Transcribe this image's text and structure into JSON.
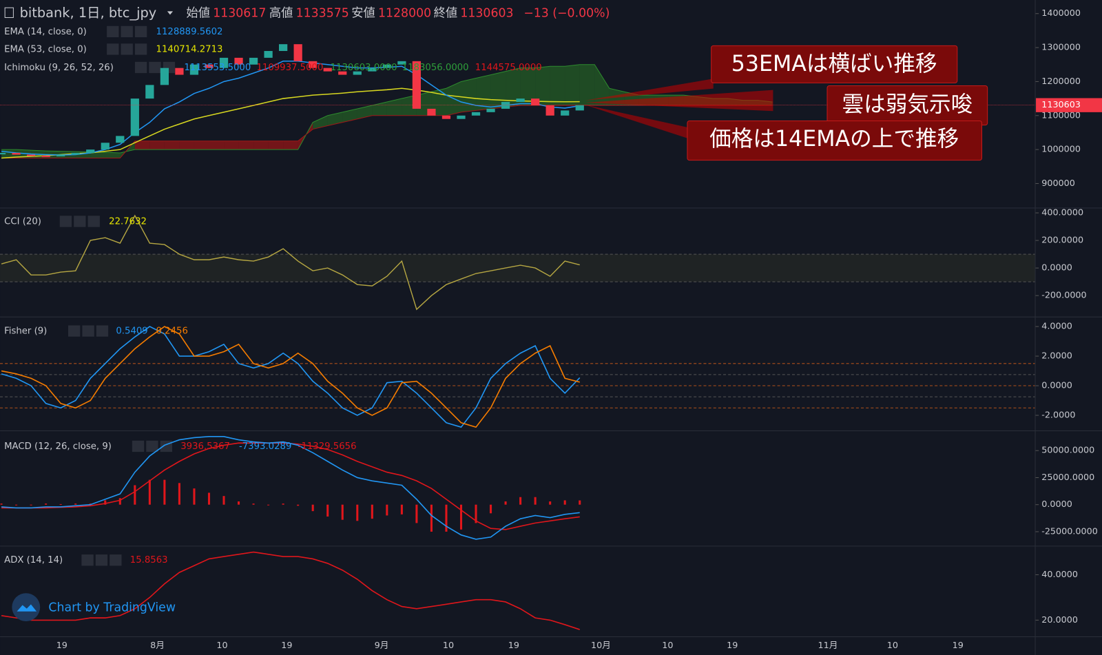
{
  "header": {
    "title": "bitbank, 1日, btc_jpy",
    "open_label": "始値",
    "open": 1130617,
    "high_label": "高値",
    "high": 1133575,
    "low_label": "安値",
    "low": 1128000,
    "close_label": "終値",
    "change": "−13 (−0.00%)"
  },
  "price": {
    "ylim": [
      830000,
      1440000
    ],
    "yticks": [
      900000,
      1000000,
      1100000,
      1200000,
      1300000,
      1400000
    ],
    "close": [
      990000,
      985000,
      982000,
      980000,
      985000,
      990000,
      1000000,
      1020000,
      1040000,
      1150000,
      1190000,
      1240000,
      1220000,
      1250000,
      1240000,
      1270000,
      1250000,
      1270000,
      1290000,
      1310000,
      1260000,
      1240000,
      1230000,
      1220000,
      1230000,
      1240000,
      1250000,
      1260000,
      1120000,
      1100000,
      1090000,
      1100000,
      1110000,
      1120000,
      1140000,
      1150000,
      1130000,
      1100000,
      1115000,
      1130603
    ],
    "ema14": {
      "name": "EMA (14, close, 0)",
      "color": "#2196f3",
      "values": [
        995000,
        990000,
        987000,
        985000,
        984000,
        985000,
        990000,
        1000000,
        1015000,
        1050000,
        1080000,
        1120000,
        1140000,
        1165000,
        1180000,
        1200000,
        1210000,
        1225000,
        1240000,
        1260000,
        1260000,
        1255000,
        1250000,
        1245000,
        1240000,
        1240000,
        1242000,
        1245000,
        1220000,
        1190000,
        1160000,
        1140000,
        1130000,
        1125000,
        1130000,
        1135000,
        1135000,
        1125000,
        1122000,
        1128889.5602
      ]
    },
    "ema53": {
      "name": "EMA (53, close, 0)",
      "color": "#d8d820",
      "values": [
        975000,
        978000,
        980000,
        982000,
        985000,
        988000,
        990000,
        995000,
        1000000,
        1020000,
        1040000,
        1060000,
        1075000,
        1090000,
        1100000,
        1110000,
        1120000,
        1130000,
        1140000,
        1150000,
        1155000,
        1160000,
        1163000,
        1166000,
        1170000,
        1173000,
        1176000,
        1180000,
        1175000,
        1168000,
        1160000,
        1155000,
        1150000,
        1147000,
        1145000,
        1143000,
        1142000,
        1141000,
        1140500,
        1140714.2713
      ]
    },
    "ichimoku": {
      "name": "Ichimoku (9, 26, 52, 26)",
      "legend": [
        "1113553.5000",
        "1109937.5000",
        "1130603.0000",
        "1183056.0000",
        "1144575.0000"
      ],
      "span_a": [
        1000000,
        1000000,
        998000,
        996000,
        995000,
        994000,
        993000,
        992000,
        990000,
        1000000,
        1000000,
        1000000,
        1000000,
        1000000,
        1000000,
        1000000,
        1000000,
        1000000,
        1000000,
        1000000,
        1000000,
        1080000,
        1100000,
        1110000,
        1120000,
        1130000,
        1140000,
        1150000,
        1160000,
        1170000,
        1180000,
        1200000,
        1210000,
        1220000,
        1230000,
        1240000,
        1240000,
        1245000,
        1245000,
        1250000,
        1250000,
        1180000,
        1170000,
        1160000,
        1160000,
        1160000,
        1160000,
        1155000,
        1150000,
        1150000,
        1145000,
        1145000,
        1140000
      ],
      "span_b": [
        975000,
        975000,
        975000,
        975000,
        975000,
        975000,
        975000,
        975000,
        975000,
        1025000,
        1025000,
        1025000,
        1025000,
        1025000,
        1025000,
        1025000,
        1025000,
        1025000,
        1025000,
        1025000,
        1025000,
        1060000,
        1070000,
        1080000,
        1090000,
        1100000,
        1100000,
        1100000,
        1100000,
        1100000,
        1100000,
        1110000,
        1115000,
        1120000,
        1125000,
        1130000,
        1130000,
        1130000,
        1130000,
        1130000,
        1130000,
        1130000,
        1130000,
        1130000,
        1130000,
        1130000,
        1130000,
        1130000,
        1130000,
        1130000,
        1130000,
        1130000,
        1130000
      ]
    }
  },
  "cci": {
    "name": "CCI (20)",
    "color": "#b5a642",
    "band": [
      -100,
      100
    ],
    "ylim": [
      -350,
      430
    ],
    "yticks": [
      {
        "value": 400,
        "label": "400.0000"
      },
      {
        "value": 200,
        "label": "200.0000"
      },
      {
        "value": 0,
        "label": "0.0000"
      },
      {
        "value": -200,
        "label": "-200.0000"
      }
    ],
    "values": [
      30,
      60,
      -50,
      -50,
      -30,
      -20,
      200,
      220,
      180,
      380,
      180,
      170,
      100,
      60,
      60,
      80,
      60,
      50,
      80,
      140,
      50,
      -20,
      0,
      -50,
      -120,
      -130,
      -60,
      50,
      -300,
      -200,
      -120,
      -80,
      -40,
      -20,
      0,
      20,
      0,
      -60,
      50,
      22.7632
    ]
  },
  "fisher": {
    "name": "Fisher (9)",
    "ylim": [
      -3,
      4.6
    ],
    "levels": [
      1.5,
      0.75,
      0,
      -0.75,
      -1.5
    ],
    "yticks": [
      {
        "value": 4,
        "label": "4.0000"
      },
      {
        "value": 2,
        "label": "2.0000"
      },
      {
        "value": 0,
        "label": "0.0000"
      },
      {
        "value": -2,
        "label": "-2.0000"
      }
    ],
    "series": [
      {
        "color": "#2196f3",
        "values": [
          0.8,
          0.5,
          0,
          -1.2,
          -1.5,
          -1.0,
          0.5,
          1.5,
          2.5,
          3.3,
          4.0,
          3.5,
          2.0,
          2.0,
          2.3,
          2.8,
          1.5,
          1.2,
          1.5,
          2.2,
          1.5,
          0.3,
          -0.5,
          -1.5,
          -2.0,
          -1.5,
          0.2,
          0.3,
          -0.5,
          -1.5,
          -2.5,
          -2.8,
          -1.5,
          0.5,
          1.5,
          2.2,
          2.7,
          0.5,
          -0.5,
          0.5409
        ]
      },
      {
        "color": "#f57c00",
        "values": [
          1.0,
          0.8,
          0.5,
          0,
          -1.2,
          -1.5,
          -1.0,
          0.5,
          1.5,
          2.5,
          3.3,
          4.0,
          3.5,
          2.0,
          2.0,
          2.3,
          2.8,
          1.5,
          1.2,
          1.5,
          2.2,
          1.5,
          0.3,
          -0.5,
          -1.5,
          -2.0,
          -1.5,
          0.2,
          0.3,
          -0.5,
          -1.5,
          -2.5,
          -2.8,
          -1.5,
          0.5,
          1.5,
          2.2,
          2.7,
          0.5,
          0.2456
        ]
      }
    ]
  },
  "macd": {
    "name": "MACD (12, 26, close, 9)",
    "ylim": [
      -37000,
      67000
    ],
    "yticks": [
      {
        "value": 50000,
        "label": "50000.0000"
      },
      {
        "value": 25000,
        "label": "25000.0000"
      },
      {
        "value": 0,
        "label": "0.0000"
      },
      {
        "value": -25000,
        "label": "-25000.0000"
      }
    ],
    "histogram": {
      "color": "#e0161b",
      "values": [
        1000,
        0,
        0,
        1000,
        500,
        1000,
        1000,
        4000,
        6000,
        18000,
        23000,
        23000,
        20000,
        15000,
        11000,
        8000,
        3000,
        1000,
        0,
        1000,
        -1000,
        -6000,
        -11000,
        -14000,
        -15000,
        -13000,
        -10000,
        -9000,
        -17000,
        -25000,
        -25000,
        -23000,
        -17000,
        -8000,
        3000,
        7000,
        7000,
        3000,
        4000,
        3936.5367
      ]
    },
    "macd": {
      "color": "#2196f3",
      "values": [
        -2000,
        -3000,
        -3000,
        -2000,
        -2000,
        -1000,
        0,
        5000,
        10000,
        30000,
        45000,
        55000,
        60000,
        62000,
        63000,
        63000,
        60000,
        58000,
        57000,
        58000,
        55000,
        48000,
        40000,
        32000,
        25000,
        22000,
        20000,
        18000,
        5000,
        -10000,
        -20000,
        -28000,
        -32000,
        -30000,
        -20000,
        -13000,
        -10000,
        -12000,
        -9000,
        -7393.0289
      ]
    },
    "signal": {
      "color": "#e0161b",
      "values": [
        -3000,
        -3000,
        -3000,
        -3000,
        -2500,
        -2000,
        -1000,
        1000,
        4000,
        12000,
        22000,
        32000,
        40000,
        47000,
        52000,
        55000,
        57000,
        57000,
        57000,
        57000,
        56000,
        54000,
        51000,
        46000,
        40000,
        35000,
        30000,
        27000,
        22000,
        15000,
        5000,
        -5000,
        -15000,
        -22000,
        -23000,
        -20000,
        -17000,
        -15000,
        -13000,
        -11329.5656
      ]
    }
  },
  "adx": {
    "name": "ADX (14, 14)",
    "color": "#e0161b",
    "ylim": [
      13,
      52
    ],
    "yticks": [
      {
        "value": 40,
        "label": "40.0000"
      },
      {
        "value": 20,
        "label": "20.0000"
      }
    ],
    "values": [
      22,
      21,
      20,
      20,
      20,
      20,
      21,
      21,
      22,
      25,
      30,
      36,
      41,
      44,
      47,
      48,
      49,
      50,
      49,
      48,
      48,
      47,
      45,
      42,
      38,
      33,
      29,
      26,
      25,
      26,
      27,
      28,
      29,
      29,
      28,
      25,
      21,
      20,
      18,
      15.8563
    ]
  },
  "xticks": [
    "19",
    "8月",
    "10",
    "19",
    "9月",
    "10",
    "19",
    "10月",
    "10",
    "19",
    "11月",
    "10",
    "19"
  ],
  "annotations": [
    "53EMAは横ばい推移",
    "雲は弱気示唆",
    "価格は14EMAの上で推移"
  ],
  "watermark": "Chart by TradingView"
}
